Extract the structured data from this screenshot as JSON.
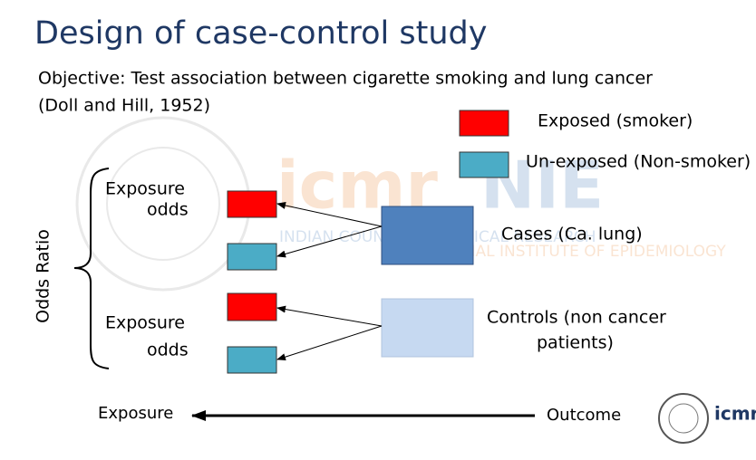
{
  "slide": {
    "title": "Design of case-control study",
    "objective": [
      "Objective: Test association between cigarette smoking and lung cancer",
      "(Doll and Hill, 1952)"
    ],
    "legend": [
      {
        "label": "Exposed (smoker)",
        "color": "#ff0000"
      },
      {
        "label": "Un-exposed (Non-smoker)",
        "color": "#4bacc6"
      }
    ],
    "odds_ratio": "Odds Ratio",
    "groups": [
      {
        "name": "Cases (Ca. lung)",
        "odds_label": [
          "Exposure",
          "odds"
        ],
        "color": "#4f81bd"
      },
      {
        "name_lines": [
          "Controls (non cancer",
          "patients)"
        ],
        "odds_label": [
          "Exposure",
          "odds"
        ],
        "color": "#c6d9f1"
      }
    ],
    "direction": {
      "from": "Outcome",
      "to": "Exposure"
    },
    "watermark": {
      "logo": "icmr",
      "institute": "NIE",
      "line1": "INDIAN COUNCIL OF MEDICAL RESEARCH",
      "line2": "NATIONAL INSTITUTE OF EPIDEMIOLOGY"
    },
    "footer_logo": "icmr"
  }
}
